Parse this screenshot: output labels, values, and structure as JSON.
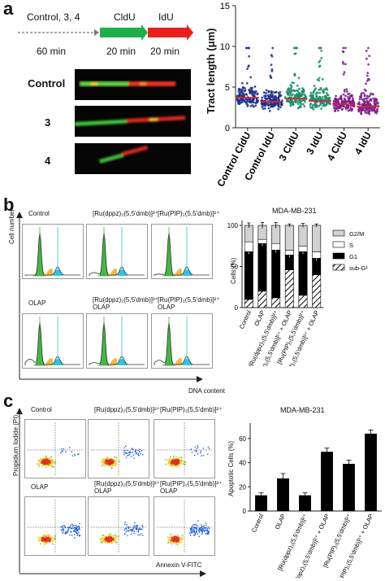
{
  "panel_a": {
    "letter": "a",
    "timeline": {
      "treatment": "Control, 3, 4",
      "label_cldu": "CldU",
      "label_idu": "IdU",
      "time_pre": "60 min",
      "time_cldu": "20 min",
      "time_idu": "20 min",
      "colors": {
        "cldu": "#1db04a",
        "idu": "#e8201a"
      }
    },
    "fiber_labels": [
      "Control",
      "3",
      "4"
    ],
    "chart": {
      "ylabel": "Tract length (μm)",
      "yticks": [
        "0",
        "5",
        "10",
        "15"
      ],
      "xticks": [
        {
          "prefix": "Control ",
          "bold": "",
          "suffix": "CldU"
        },
        {
          "prefix": "Control ",
          "bold": "",
          "suffix": "IdU"
        },
        {
          "prefix": "",
          "bold": "3",
          "suffix": " CldU"
        },
        {
          "prefix": "",
          "bold": "3",
          "suffix": " IdU"
        },
        {
          "prefix": "",
          "bold": "4",
          "suffix": " CldU"
        },
        {
          "prefix": "",
          "bold": "4",
          "suffix": " IdU"
        }
      ]
    }
  },
  "panel_b": {
    "letter": "b",
    "hist_titles": [
      "Control",
      "[Ru(dppz)₂(5,5'dmb)]²⁺",
      "[Ru(PIP)₂(5,5'dmb)]²⁺",
      "OLAP",
      "[Ru(dppz)₂(5,5'dmb)]²⁺\nOLAP",
      "[Ru(PIP)₂(5,5'dmb)]²⁺\nOLAP"
    ],
    "y_axis": "Cell number",
    "x_axis": "DNA content",
    "chart": {
      "title": "MDA-MB-231",
      "ylabel": "Cells (%)",
      "yticks": [
        "0",
        "50",
        "100"
      ],
      "legend": [
        "G2/M",
        "S",
        "G1",
        "sub-G¹"
      ],
      "categories": [
        "Control",
        "OLAP",
        "[Ru(dppz)₂(5,5'dmb)]²⁺",
        "[Ru(dppz)₂(5,5'dmb)]²⁺ + OLAP",
        "[Ru(PIP)₂(5,5'dmb)]²⁺",
        "[Ru(PIP)₂(5,5'dmb)]²⁺ + OLAP"
      ]
    }
  },
  "panel_c": {
    "letter": "c",
    "plot_titles": [
      "Control",
      "[Ru(dppz)₂(5,5'dmb)]²⁺",
      "[Ru(PIP)₂(5,5'dmb)]²⁺",
      "OLAP",
      "[Ru(dppz)₂(5,5'dmb)]²⁺\nOLAP",
      "[Ru(PIP)₂(5,5'dmb)]²⁺\nOLAP"
    ],
    "y_axis": "Propidium Iodide (PI)",
    "x_axis": "Annexin V-FITC",
    "chart": {
      "title": "MDA-MB-231",
      "ylabel": "Apoptotic Cells (%)",
      "yticks": [
        "0",
        "20",
        "40",
        "60"
      ],
      "categories": [
        "Control",
        "OLAP",
        "[Ru(dppz)₂(5,5'dmb)]²⁺",
        "[Ru(dppz)₂(5,5'dmb)]²⁺ + OLAP",
        "[Ru(PIP)₂(5,5'dmb)]²⁺",
        "[Ru(PIP)₂(5,5'dmb)]²⁺ + OLAP"
      ]
    }
  },
  "chart_data": [
    {
      "type": "scatter",
      "title": "",
      "ylabel": "Tract length (μm)",
      "ylim": [
        0,
        15
      ],
      "categories": [
        "Control CldU",
        "Control IdU",
        "3 CldU",
        "3 IdU",
        "4 CldU",
        "4 IdU"
      ],
      "medians": [
        3.7,
        3.2,
        3.6,
        3.3,
        2.9,
        2.6
      ],
      "colors": [
        "#1f2f8a",
        "#1f2f8a",
        "#1a8c6a",
        "#1a8c6a",
        "#7a1f8a",
        "#7a1f8a"
      ],
      "median_color": "#d8262e"
    },
    {
      "type": "bar",
      "title": "MDA-MB-231",
      "ylabel": "Cells (%)",
      "ylim": [
        0,
        100
      ],
      "stacked": true,
      "categories": [
        "Control",
        "OLAP",
        "[Ru(dppz)₂(5,5'dmb)]²⁺",
        "[Ru(dppz)₂(5,5'dmb)]²⁺ + OLAP",
        "[Ru(PIP)₂(5,5'dmb)]²⁺",
        "[Ru(PIP)₂(5,5'dmb)]²⁺ + OLAP"
      ],
      "series": [
        {
          "name": "sub-G¹",
          "values": [
            10,
            20,
            12,
            46,
            15,
            40
          ]
        },
        {
          "name": "G1",
          "values": [
            58,
            58,
            58,
            18,
            53,
            20
          ]
        },
        {
          "name": "S",
          "values": [
            12,
            5,
            8,
            6,
            7,
            8
          ]
        },
        {
          "name": "G2/M",
          "values": [
            20,
            17,
            22,
            30,
            25,
            32
          ]
        }
      ],
      "errors": [
        5,
        6,
        6,
        3,
        4,
        3
      ],
      "colors": {
        "G2/M": "#d2d2d2",
        "S": "#ffffff",
        "G1": "#000000",
        "sub-G¹": "hatched"
      },
      "legend_position": "right"
    },
    {
      "type": "bar",
      "title": "MDA-MB-231",
      "ylabel": "Apoptotic Cells (%)",
      "ylim": [
        0,
        70
      ],
      "categories": [
        "Control",
        "OLAP",
        "[Ru(dppz)₂(5,5'dmb)]²⁺",
        "[Ru(dppz)₂(5,5'dmb)]²⁺ + OLAP",
        "[Ru(PIP)₂(5,5'dmb)]²⁺",
        "[Ru(PIP)₂(5,5'dmb)]²⁺ + OLAP"
      ],
      "values": [
        13,
        27,
        13,
        49,
        39,
        64
      ],
      "errors": [
        2,
        4,
        2,
        3,
        3,
        3
      ]
    }
  ]
}
